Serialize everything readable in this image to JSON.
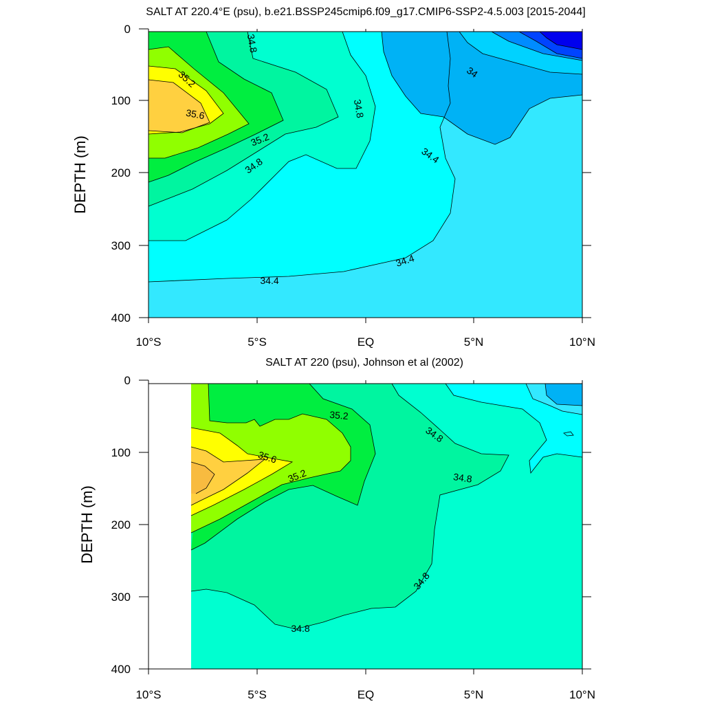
{
  "colors": {
    "s33_8": "#0000ee",
    "s34_0": "#0044ff",
    "s34_1": "#008cff",
    "s34_2": "#00b2f5",
    "s34_3": "#00d2ff",
    "s34_4": "#33e8ff",
    "s34_6": "#00ffff",
    "s34_8": "#00ffd0",
    "s35_0": "#00f5a0",
    "s35_2": "#00ee40",
    "s35_4": "#90ff00",
    "s35_6": "#ffff00",
    "s35_8": "#ffd040",
    "s36_0": "#f8bb40",
    "contour_line": "#000000"
  },
  "chart_data": [
    {
      "type": "contour",
      "title": "SALT AT 220.4°E (psu), b.e21.BSSP245cmip6.f09_g17.CMIP6-SSP2-4.5.003 [2015-2044]",
      "xlabel": "",
      "ylabel": "DEPTH (m)",
      "x_ticks": [
        "10°S",
        "5°S",
        "EQ",
        "5°N",
        "10°N"
      ],
      "y_ticks": [
        "0",
        "100",
        "200",
        "300",
        "400"
      ],
      "xlim": [
        -10,
        10
      ],
      "ylim": [
        400,
        0
      ],
      "contour_interval": 0.2,
      "contour_labels": [
        "34.8",
        "35.2",
        "35.6",
        "35.2",
        "34.8",
        "34.8",
        "34.4",
        "34.4",
        "34.4",
        "34"
      ]
    },
    {
      "type": "contour",
      "title": "SALT AT 220 (psu), Johnson et al (2002)",
      "xlabel": "",
      "ylabel": "DEPTH (m)",
      "x_ticks": [
        "10°S",
        "5°S",
        "EQ",
        "5°N",
        "10°N"
      ],
      "y_ticks": [
        "0",
        "100",
        "200",
        "300",
        "400"
      ],
      "xlim": [
        -10,
        10
      ],
      "ylim": [
        400,
        0
      ],
      "data_lon_range": [
        -8,
        10
      ],
      "contour_interval": 0.2,
      "contour_labels": [
        "35.2",
        "35.6",
        "35.2",
        "34.8",
        "34.8",
        "34.8",
        "34.8"
      ]
    }
  ]
}
